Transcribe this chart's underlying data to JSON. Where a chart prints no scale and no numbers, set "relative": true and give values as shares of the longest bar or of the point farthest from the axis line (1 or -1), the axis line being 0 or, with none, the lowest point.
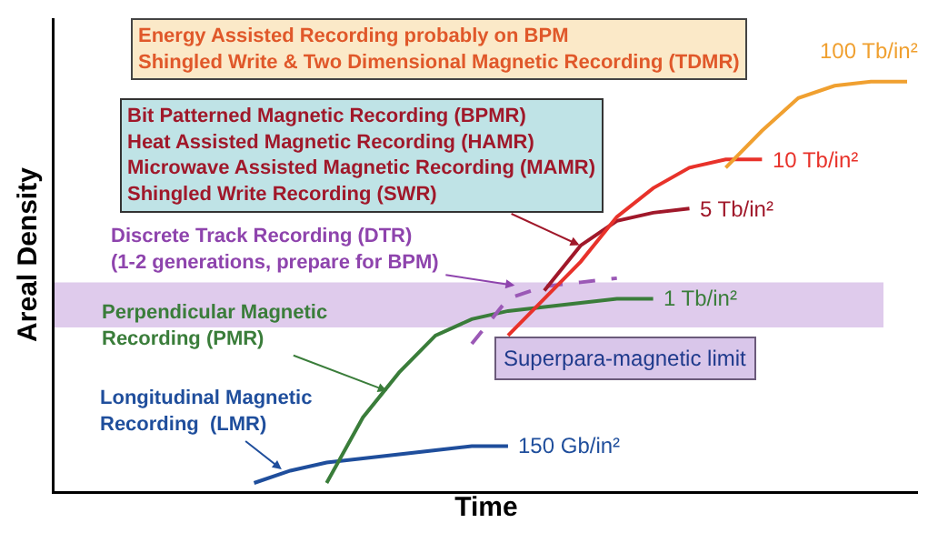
{
  "chart_data": {
    "type": "line",
    "relative": true,
    "xlabel": "Time",
    "ylabel": "Areal Density",
    "legend": false,
    "grid": false,
    "marker": "none",
    "categories": [
      null,
      null,
      null,
      null,
      null,
      null,
      null,
      null,
      null,
      null,
      null,
      null,
      null,
      null,
      null,
      null,
      null,
      null,
      null,
      null,
      null,
      null,
      null,
      null
    ],
    "series": [
      {
        "name": "150 Gb/in²",
        "color": "#1f4e9c",
        "values": [
          null,
          null,
          null,
          null,
          null,
          0.02,
          0.05,
          0.07,
          0.08,
          0.09,
          0.1,
          0.11,
          0.11,
          null,
          null,
          null,
          null,
          null,
          null,
          null,
          null,
          null,
          null,
          null
        ]
      },
      {
        "name": "1 Tb/in²",
        "color": "#3a7d3a",
        "values": [
          null,
          null,
          null,
          null,
          null,
          null,
          null,
          0.02,
          0.18,
          0.29,
          0.38,
          0.42,
          0.44,
          0.45,
          0.46,
          0.47,
          0.47,
          null,
          null,
          null,
          null,
          null,
          null,
          null
        ]
      },
      {
        "color": "#9b59b6",
        "line_style": "dashed",
        "values": [
          null,
          null,
          null,
          null,
          null,
          null,
          null,
          null,
          null,
          null,
          null,
          0.36,
          0.47,
          0.5,
          0.51,
          0.52,
          null,
          null,
          null,
          null,
          null,
          null,
          null,
          null
        ]
      },
      {
        "name": "5 Tb/in²",
        "color": "#a0182a",
        "values": [
          null,
          null,
          null,
          null,
          null,
          null,
          null,
          null,
          null,
          null,
          null,
          null,
          null,
          0.49,
          0.6,
          0.66,
          0.68,
          0.69,
          null,
          null,
          null,
          null,
          null,
          null
        ]
      },
      {
        "name": "10 Tb/in²",
        "color": "#e8322a",
        "values": [
          null,
          null,
          null,
          null,
          null,
          null,
          null,
          null,
          null,
          null,
          null,
          null,
          0.38,
          0.47,
          0.56,
          0.67,
          0.74,
          0.79,
          0.81,
          0.81,
          null,
          null,
          null,
          null
        ]
      },
      {
        "name": "100 Tb/in²",
        "color": "#f0a030",
        "values": [
          null,
          null,
          null,
          null,
          null,
          null,
          null,
          null,
          null,
          null,
          null,
          null,
          null,
          null,
          null,
          null,
          null,
          null,
          0.79,
          0.88,
          0.96,
          0.99,
          1.0,
          1.0
        ]
      }
    ],
    "bands": [
      {
        "axis": "y",
        "from": 0.4,
        "to": 0.51,
        "label": "Superpara-magnetic limit",
        "color": "#c9a8e0"
      }
    ],
    "annotations": [
      "Energy Assisted Recording probably on BPM\nShingled Write & Two Dimensional Magnetic Recording (TDMR)",
      "Bit Patterned Magnetic Recording (BPMR)\nHeat Assisted Magnetic Recording (HAMR)\nMicrowave Assisted Magnetic Recording (MAMR)\nShingled Write Recording (SWR)",
      "Discrete Track Recording (DTR)\n(1-2 generations, prepare for BPM)",
      "Perpendicular Magnetic\nRecording (PMR)",
      "Longitudinal Magnetic\nRecording  (LMR)"
    ]
  }
}
